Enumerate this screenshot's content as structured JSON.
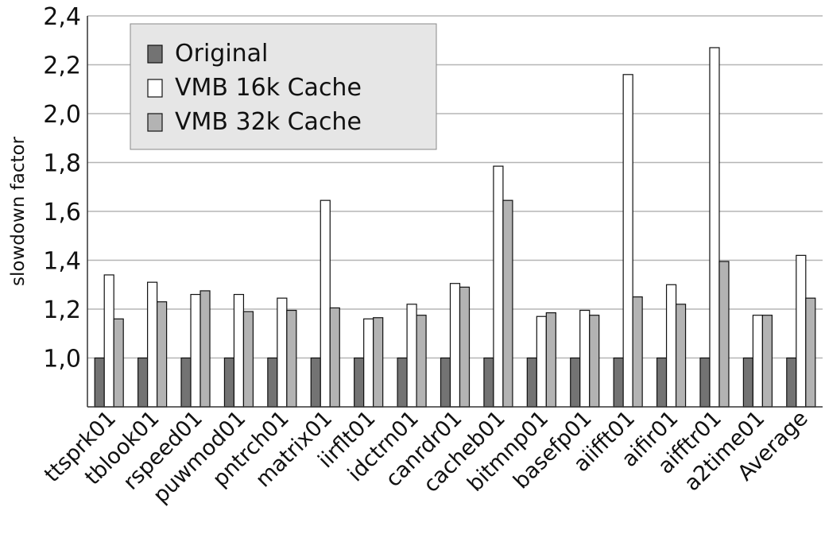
{
  "chart_data": {
    "type": "bar",
    "title": "",
    "xlabel": "",
    "ylabel": "slowdown factor",
    "ylim": [
      0.8,
      2.4
    ],
    "yticks": [
      1.0,
      1.2,
      1.4,
      1.6,
      1.8,
      2.0,
      2.2,
      2.4
    ],
    "ytick_labels": [
      "1,0",
      "1,2",
      "1,4",
      "1,6",
      "1,8",
      "2,0",
      "2,2",
      "2,4"
    ],
    "grid": true,
    "legend_position": "top-left",
    "categories": [
      "ttsprk01",
      "tblook01",
      "rspeed01",
      "puwmod01",
      "pntrch01",
      "matrix01",
      "iirflt01",
      "idctrn01",
      "canrdr01",
      "cacheb01",
      "bitmnp01",
      "basefp01",
      "aiifft01",
      "aifir01",
      "aifftr01",
      "a2time01",
      "Average"
    ],
    "series": [
      {
        "name": "Original",
        "color": "#737373",
        "values": [
          1.0,
          1.0,
          1.0,
          1.0,
          1.0,
          1.0,
          1.0,
          1.0,
          1.0,
          1.0,
          1.0,
          1.0,
          1.0,
          1.0,
          1.0,
          1.0,
          1.0
        ]
      },
      {
        "name": "VMB 16k Cache",
        "color": "#ffffff",
        "values": [
          1.34,
          1.31,
          1.26,
          1.26,
          1.245,
          1.645,
          1.16,
          1.22,
          1.305,
          1.785,
          1.17,
          1.195,
          2.16,
          1.3,
          2.27,
          1.175,
          1.42
        ]
      },
      {
        "name": "VMB 32k Cache",
        "color": "#b3b3b3",
        "values": [
          1.16,
          1.23,
          1.275,
          1.19,
          1.195,
          1.205,
          1.165,
          1.175,
          1.29,
          1.645,
          1.185,
          1.175,
          1.25,
          1.22,
          1.395,
          1.175,
          1.245
        ]
      }
    ]
  }
}
